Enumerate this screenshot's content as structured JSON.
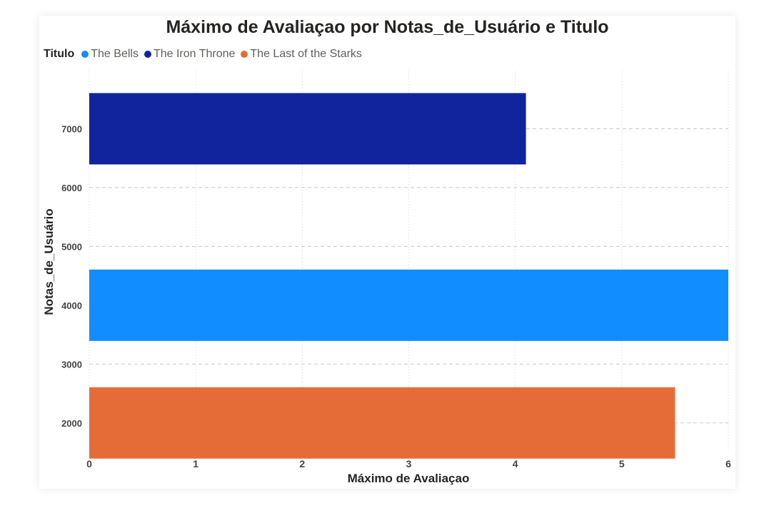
{
  "chart_data": {
    "type": "bar",
    "orientation": "horizontal",
    "title": "Máximo de Avaliaçao por Notas_de_Usuário e Titulo",
    "xlabel": "Máximo de Avaliaçao",
    "ylabel": "Notas_de_Usuário",
    "legend_title": "Titulo",
    "legend_position": "top-left",
    "xlim": [
      0,
      6
    ],
    "ylim": [
      1500,
      8000
    ],
    "xticks": [
      0,
      1,
      2,
      3,
      4,
      5,
      6
    ],
    "yticks": [
      2000,
      3000,
      4000,
      5000,
      6000,
      7000
    ],
    "grid": true,
    "series": [
      {
        "name": "The Bells",
        "color": "#118dff",
        "points": [
          {
            "y": 4000,
            "x": 6.0
          }
        ]
      },
      {
        "name": "The Iron Throne",
        "color": "#12239e",
        "points": [
          {
            "y": 7000,
            "x": 4.1
          }
        ]
      },
      {
        "name": "The Last of the Starks",
        "color": "#e66c37",
        "points": [
          {
            "y": 2000,
            "x": 5.5
          }
        ]
      }
    ]
  }
}
